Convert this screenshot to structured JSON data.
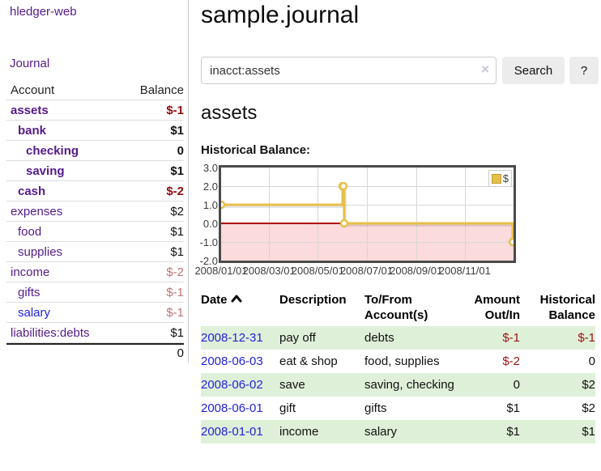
{
  "sidebar": {
    "app_title": "hledger-web",
    "journal_link": "Journal",
    "table": {
      "account_header": "Account",
      "balance_header": "Balance",
      "rows": [
        {
          "account": "assets",
          "balance": "$-1",
          "level": 1,
          "bold": true,
          "balance_style": "neg-bold"
        },
        {
          "account": "bank",
          "balance": "$1",
          "level": 2,
          "bold": true,
          "balance_style": ""
        },
        {
          "account": "checking",
          "balance": "0",
          "level": 3,
          "bold": true,
          "balance_style": ""
        },
        {
          "account": "saving",
          "balance": "$1",
          "level": 3,
          "bold": true,
          "balance_style": ""
        },
        {
          "account": "cash",
          "balance": "$-2",
          "level": 2,
          "bold": true,
          "balance_style": "neg-bold"
        },
        {
          "account": "expenses",
          "balance": "$2",
          "level": 1,
          "bold": false,
          "balance_style": ""
        },
        {
          "account": "food",
          "balance": "$1",
          "level": 2,
          "bold": false,
          "balance_style": ""
        },
        {
          "account": "supplies",
          "balance": "$1",
          "level": 2,
          "bold": false,
          "balance_style": ""
        },
        {
          "account": "income",
          "balance": "$-2",
          "level": 1,
          "bold": false,
          "balance_style": "neg-light"
        },
        {
          "account": "gifts",
          "balance": "$-1",
          "level": 2,
          "bold": false,
          "balance_style": "neg-light"
        },
        {
          "account": "salary",
          "balance": "$-1",
          "level": 2,
          "bold": false,
          "balance_style": "neg-light",
          "link_style": "blue"
        },
        {
          "account": "liabilities:debts",
          "balance": "$1",
          "level": 1,
          "bold": false,
          "balance_style": ""
        }
      ],
      "total": "0"
    }
  },
  "header": {
    "title": "sample.journal"
  },
  "search": {
    "value": "inacct:assets",
    "clear_icon": "×",
    "button_label": "Search",
    "help_label": "?"
  },
  "main": {
    "account_heading": "assets",
    "chart_label": "Historical Balance:"
  },
  "chart_data": {
    "type": "line",
    "step": true,
    "series": [
      {
        "name": "$",
        "points": [
          {
            "x": "2008-01-01",
            "y": 1
          },
          {
            "x": "2008-06-01",
            "y": 2
          },
          {
            "x": "2008-06-02",
            "y": 2
          },
          {
            "x": "2008-06-03",
            "y": 0
          },
          {
            "x": "2008-12-31",
            "y": -1
          }
        ]
      }
    ],
    "legend": {
      "label": "$",
      "position": "top-right"
    },
    "line_color": "#e7c04a",
    "marker_fill": "#ffffff",
    "negative_region_color": "#fbdbdb",
    "zero_line_color": "#ad0000",
    "xlim": [
      "2008-01-01",
      "2009-01-01"
    ],
    "ylim": [
      -2,
      3
    ],
    "x_ticks": [
      {
        "label": "2008/01/01",
        "date": "2008-01-01"
      },
      {
        "label": "2008/03/01",
        "date": "2008-03-01"
      },
      {
        "label": "2008/05/01",
        "date": "2008-05-01"
      },
      {
        "label": "2008/07/01",
        "date": "2008-07-01"
      },
      {
        "label": "2008/09/01",
        "date": "2008-09-01"
      },
      {
        "label": "2008/11/01",
        "date": "2008-11-01"
      }
    ],
    "y_ticks": [
      {
        "label": "3.0",
        "value": 3
      },
      {
        "label": "2.0",
        "value": 2
      },
      {
        "label": "1.0",
        "value": 1
      },
      {
        "label": "0.0",
        "value": 0
      },
      {
        "label": "-1.0",
        "value": -1
      },
      {
        "label": "-2.0",
        "value": -2
      }
    ],
    "grid": true
  },
  "register": {
    "headers": {
      "date": "Date",
      "description": "Description",
      "accounts": "To/From Account(s)",
      "amount": "Amount Out/In",
      "balance": "Historical Balance"
    },
    "rows": [
      {
        "date": "2008-12-31",
        "description": "pay off",
        "accounts": "debts",
        "amount": "$-1",
        "balance": "$-1",
        "amount_neg": true,
        "balance_neg": true,
        "shaded": true
      },
      {
        "date": "2008-06-03",
        "description": "eat & shop",
        "accounts": "food, supplies",
        "amount": "$-2",
        "balance": "0",
        "amount_neg": true,
        "balance_neg": false,
        "shaded": false
      },
      {
        "date": "2008-06-02",
        "description": "save",
        "accounts": "saving, checking",
        "amount": "0",
        "balance": "$2",
        "amount_neg": false,
        "balance_neg": false,
        "shaded": true
      },
      {
        "date": "2008-06-01",
        "description": "gift",
        "accounts": "gifts",
        "amount": "$1",
        "balance": "$2",
        "amount_neg": false,
        "balance_neg": false,
        "shaded": false
      },
      {
        "date": "2008-01-01",
        "description": "income",
        "accounts": "salary",
        "amount": "$1",
        "balance": "$1",
        "amount_neg": false,
        "balance_neg": false,
        "shaded": true
      }
    ]
  }
}
